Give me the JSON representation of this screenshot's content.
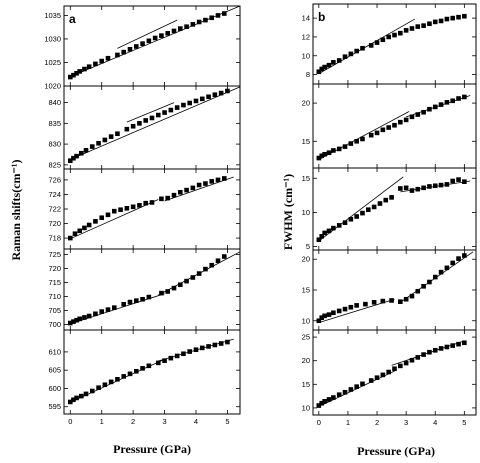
{
  "figure": {
    "left_panel_letter": "a",
    "right_panel_letter": "b",
    "left_ylabel": "Raman shifts(cm⁻¹)",
    "right_ylabel": "FWHM (cm⁻¹)",
    "xlabel": "Pressure (GPa)"
  },
  "chart_data": [
    {
      "type": "scatter",
      "column": "a",
      "row": 0,
      "xlim": [
        -0.2,
        5.4
      ],
      "xticks": [
        0,
        1,
        2,
        3,
        4,
        5
      ],
      "ylim": [
        1020,
        1037
      ],
      "yticks": [
        1020,
        1025,
        1030,
        1035
      ],
      "x": [
        0,
        0.1,
        0.2,
        0.3,
        0.45,
        0.6,
        0.8,
        1.0,
        1.2,
        1.5,
        1.7,
        1.9,
        2.1,
        2.3,
        2.5,
        2.7,
        2.9,
        3.1,
        3.3,
        3.5,
        3.7,
        3.9,
        4.1,
        4.3,
        4.5,
        4.7,
        4.9
      ],
      "y": [
        1021.9,
        1022.3,
        1022.7,
        1023.1,
        1023.6,
        1024.1,
        1024.7,
        1025.3,
        1025.9,
        1026.6,
        1027.2,
        1027.8,
        1028.4,
        1029.0,
        1029.6,
        1030.2,
        1030.7,
        1031.2,
        1031.7,
        1032.2,
        1032.6,
        1033.1,
        1033.6,
        1034.0,
        1034.5,
        1035.0,
        1035.4
      ],
      "fits": [
        [
          [
            0,
            1022.0
          ],
          [
            5.4,
            1037.0
          ]
        ],
        [
          [
            1.5,
            1028.0
          ],
          [
            3.4,
            1034.0
          ]
        ]
      ]
    },
    {
      "type": "scatter",
      "column": "a",
      "row": 1,
      "xlim": [
        -0.2,
        5.4
      ],
      "xticks": [
        0,
        1,
        2,
        3,
        4,
        5
      ],
      "ylim": [
        824,
        844
      ],
      "yticks": [
        825,
        830,
        835,
        840
      ],
      "x": [
        0,
        0.1,
        0.2,
        0.35,
        0.5,
        0.7,
        0.9,
        1.1,
        1.3,
        1.5,
        1.8,
        2.0,
        2.2,
        2.4,
        2.6,
        2.8,
        3.0,
        3.2,
        3.4,
        3.6,
        3.8,
        4.0,
        4.2,
        4.4,
        4.6,
        4.8,
        5.0
      ],
      "y": [
        826.0,
        826.6,
        827.1,
        827.8,
        828.5,
        829.4,
        830.2,
        831.0,
        831.8,
        832.5,
        833.6,
        834.3,
        835.0,
        835.7,
        836.3,
        837.0,
        837.6,
        838.2,
        838.8,
        839.4,
        839.9,
        840.4,
        840.9,
        841.4,
        841.9,
        842.3,
        842.8
      ],
      "fits": [
        [
          [
            0,
            826.3
          ],
          [
            5.4,
            843.8
          ]
        ],
        [
          [
            1.8,
            835.3
          ],
          [
            3.3,
            840.0
          ]
        ]
      ]
    },
    {
      "type": "scatter",
      "column": "a",
      "row": 2,
      "xlim": [
        -0.2,
        5.4
      ],
      "xticks": [
        0,
        1,
        2,
        3,
        4,
        5
      ],
      "ylim": [
        716.5,
        727.5
      ],
      "yticks": [
        718,
        720,
        722,
        724,
        726
      ],
      "x": [
        0,
        0.15,
        0.3,
        0.45,
        0.6,
        0.8,
        1.0,
        1.2,
        1.4,
        1.6,
        1.8,
        2.0,
        2.2,
        2.4,
        2.6,
        2.9,
        3.1,
        3.3,
        3.5,
        3.7,
        3.9,
        4.1,
        4.3,
        4.5,
        4.7,
        4.9
      ],
      "y": [
        718.0,
        718.6,
        719.0,
        719.4,
        719.8,
        720.3,
        720.8,
        721.2,
        721.7,
        721.9,
        722.1,
        722.3,
        722.5,
        722.8,
        722.9,
        723.4,
        723.5,
        723.9,
        724.3,
        724.6,
        724.9,
        725.3,
        725.5,
        725.8,
        726.0,
        726.2
      ],
      "fits": [
        [
          [
            0,
            717.9
          ],
          [
            2.8,
            723.3
          ]
        ],
        [
          [
            3.0,
            723.1
          ],
          [
            5.2,
            726.4
          ]
        ]
      ]
    },
    {
      "type": "scatter",
      "column": "a",
      "row": 3,
      "xlim": [
        -0.2,
        5.4
      ],
      "xticks": [
        0,
        1,
        2,
        3,
        4,
        5
      ],
      "ylim": [
        698,
        727
      ],
      "yticks": [
        700,
        705,
        710,
        715,
        720,
        725
      ],
      "x": [
        0,
        0.1,
        0.2,
        0.3,
        0.45,
        0.6,
        0.8,
        1.0,
        1.2,
        1.4,
        1.7,
        1.9,
        2.1,
        2.3,
        2.5,
        2.9,
        3.1,
        3.3,
        3.5,
        3.7,
        3.9,
        4.1,
        4.3,
        4.5,
        4.7,
        4.9
      ],
      "y": [
        700.5,
        701.0,
        701.5,
        702.0,
        702.5,
        703.0,
        703.8,
        704.6,
        705.3,
        706.0,
        707.2,
        708.0,
        708.5,
        709.0,
        709.8,
        711.2,
        711.8,
        713.0,
        714.2,
        715.5,
        716.8,
        718.2,
        719.8,
        721.2,
        722.8,
        724.3
      ],
      "fits": [
        [
          [
            0,
            700.2
          ],
          [
            3.0,
            711.0
          ]
        ],
        [
          [
            2.8,
            710.5
          ],
          [
            5.4,
            726.0
          ]
        ]
      ]
    },
    {
      "type": "scatter",
      "column": "a",
      "row": 4,
      "xlim": [
        -0.2,
        5.4
      ],
      "xticks": [
        0,
        1,
        2,
        3,
        4,
        5
      ],
      "ylim": [
        593,
        616
      ],
      "yticks": [
        595,
        600,
        605,
        610
      ],
      "x": [
        0,
        0.1,
        0.2,
        0.35,
        0.5,
        0.7,
        0.9,
        1.1,
        1.3,
        1.5,
        1.7,
        1.9,
        2.1,
        2.3,
        2.5,
        2.8,
        3.0,
        3.2,
        3.4,
        3.6,
        3.8,
        4.0,
        4.2,
        4.4,
        4.6,
        4.8,
        5.0
      ],
      "y": [
        596.3,
        596.9,
        597.4,
        597.9,
        598.5,
        599.3,
        600.2,
        601.0,
        601.8,
        602.5,
        603.3,
        604.0,
        604.7,
        605.5,
        606.2,
        607.0,
        607.6,
        608.3,
        608.9,
        609.5,
        610.1,
        610.6,
        611.1,
        611.5,
        611.9,
        612.3,
        612.7
      ],
      "fits": [
        [
          [
            0,
            596.2
          ],
          [
            3.0,
            608.0
          ]
        ],
        [
          [
            2.8,
            607.5
          ],
          [
            5.2,
            613.5
          ]
        ]
      ]
    },
    {
      "type": "scatter",
      "column": "b",
      "row": 0,
      "xlim": [
        -0.2,
        5.4
      ],
      "xticks": [
        0,
        1,
        2,
        3,
        4,
        5
      ],
      "ylim": [
        7,
        15.5
      ],
      "yticks": [
        8,
        10,
        12,
        14
      ],
      "x": [
        0,
        0.1,
        0.2,
        0.35,
        0.5,
        0.7,
        0.9,
        1.1,
        1.3,
        1.5,
        1.8,
        2.0,
        2.2,
        2.4,
        2.6,
        2.8,
        3.0,
        3.2,
        3.4,
        3.6,
        3.8,
        4.0,
        4.2,
        4.4,
        4.6,
        4.8,
        5.0
      ],
      "y": [
        8.3,
        8.6,
        8.8,
        9.0,
        9.3,
        9.5,
        9.9,
        10.2,
        10.5,
        10.8,
        11.1,
        11.4,
        11.7,
        12.0,
        12.2,
        12.4,
        12.7,
        12.9,
        13.1,
        13.2,
        13.4,
        13.6,
        13.7,
        13.9,
        14.0,
        14.1,
        14.2
      ],
      "fits": [
        [
          [
            0,
            8.1
          ],
          [
            3.3,
            13.9
          ]
        ]
      ]
    },
    {
      "type": "scatter",
      "column": "b",
      "row": 1,
      "xlim": [
        -0.2,
        5.4
      ],
      "xticks": [
        0,
        1,
        2,
        3,
        4,
        5
      ],
      "ylim": [
        11.5,
        22.5
      ],
      "yticks": [
        15,
        20
      ],
      "x": [
        0,
        0.1,
        0.2,
        0.35,
        0.5,
        0.7,
        0.9,
        1.1,
        1.3,
        1.5,
        1.8,
        2.0,
        2.2,
        2.4,
        2.6,
        2.8,
        3.0,
        3.2,
        3.4,
        3.6,
        3.8,
        4.0,
        4.2,
        4.4,
        4.6,
        4.8,
        5.0
      ],
      "y": [
        12.8,
        13.1,
        13.3,
        13.5,
        13.8,
        14.0,
        14.3,
        14.7,
        15.0,
        15.3,
        15.8,
        16.1,
        16.5,
        16.8,
        17.1,
        17.5,
        17.8,
        18.2,
        18.5,
        18.8,
        19.2,
        19.5,
        19.8,
        20.1,
        20.3,
        20.6,
        20.8
      ],
      "fits": [
        [
          [
            0,
            12.6
          ],
          [
            3.1,
            18.9
          ]
        ],
        [
          [
            3.0,
            18.2
          ],
          [
            5.2,
            21.0
          ]
        ]
      ]
    },
    {
      "type": "scatter",
      "column": "b",
      "row": 2,
      "xlim": [
        -0.2,
        5.4
      ],
      "xticks": [
        0,
        1,
        2,
        3,
        4,
        5
      ],
      "ylim": [
        4.5,
        16.5
      ],
      "yticks": [
        5,
        10,
        15
      ],
      "x": [
        0,
        0.1,
        0.2,
        0.35,
        0.5,
        0.7,
        0.9,
        1.1,
        1.3,
        1.5,
        1.7,
        1.9,
        2.1,
        2.3,
        2.5,
        2.8,
        3.0,
        3.2,
        3.4,
        3.6,
        3.8,
        4.0,
        4.2,
        4.4,
        4.6,
        4.8,
        5.0
      ],
      "y": [
        6.0,
        6.5,
        7.0,
        7.3,
        7.7,
        8.1,
        8.5,
        9.0,
        9.4,
        9.9,
        10.4,
        10.8,
        11.3,
        11.8,
        12.2,
        13.5,
        13.6,
        13.2,
        13.4,
        13.6,
        13.8,
        13.9,
        14.0,
        14.1,
        14.6,
        14.8,
        14.5
      ],
      "fits": [
        [
          [
            0,
            5.8
          ],
          [
            2.9,
            15.2
          ]
        ],
        [
          [
            2.8,
            13.0
          ],
          [
            5.2,
            14.6
          ]
        ]
      ]
    },
    {
      "type": "scatter",
      "column": "b",
      "row": 3,
      "xlim": [
        -0.2,
        5.4
      ],
      "xticks": [
        0,
        1,
        2,
        3,
        4,
        5
      ],
      "ylim": [
        8.5,
        21.5
      ],
      "yticks": [
        10,
        15,
        20
      ],
      "x": [
        0,
        0.1,
        0.2,
        0.35,
        0.5,
        0.7,
        0.9,
        1.1,
        1.3,
        1.6,
        1.9,
        2.2,
        2.5,
        2.8,
        3.0,
        3.2,
        3.4,
        3.6,
        3.8,
        4.0,
        4.2,
        4.4,
        4.6,
        4.8,
        5.0
      ],
      "y": [
        10.0,
        10.5,
        10.8,
        11.0,
        11.3,
        11.6,
        11.9,
        12.2,
        12.5,
        12.7,
        13.0,
        13.2,
        13.3,
        13.1,
        13.5,
        14.0,
        14.8,
        15.6,
        16.3,
        17.1,
        17.9,
        18.6,
        19.4,
        20.1,
        20.6
      ],
      "fits": [
        [
          [
            0,
            9.7
          ],
          [
            2.6,
            13.5
          ]
        ],
        [
          [
            2.8,
            13.0
          ],
          [
            5.3,
            21.2
          ]
        ]
      ]
    },
    {
      "type": "scatter",
      "column": "b",
      "row": 4,
      "xlim": [
        -0.2,
        5.4
      ],
      "xticks": [
        0,
        1,
        2,
        3,
        4,
        5
      ],
      "ylim": [
        8.5,
        26.5
      ],
      "yticks": [
        10,
        15,
        20,
        25
      ],
      "x": [
        0,
        0.1,
        0.2,
        0.35,
        0.5,
        0.7,
        0.9,
        1.1,
        1.3,
        1.5,
        1.8,
        2.0,
        2.2,
        2.4,
        2.6,
        2.8,
        3.0,
        3.2,
        3.4,
        3.6,
        3.8,
        4.0,
        4.2,
        4.4,
        4.6,
        4.8,
        5.0
      ],
      "y": [
        10.5,
        11.0,
        11.4,
        11.8,
        12.2,
        12.8,
        13.3,
        13.9,
        14.5,
        15.1,
        15.8,
        16.4,
        17.0,
        17.6,
        18.3,
        18.9,
        19.5,
        20.1,
        20.7,
        21.3,
        21.8,
        22.2,
        22.6,
        22.9,
        23.2,
        23.5,
        23.8
      ],
      "fits": [
        [
          [
            0,
            10.3
          ],
          [
            2.6,
            17.8
          ]
        ],
        [
          [
            2.5,
            19.0
          ],
          [
            5.0,
            24.2
          ]
        ]
      ]
    }
  ]
}
